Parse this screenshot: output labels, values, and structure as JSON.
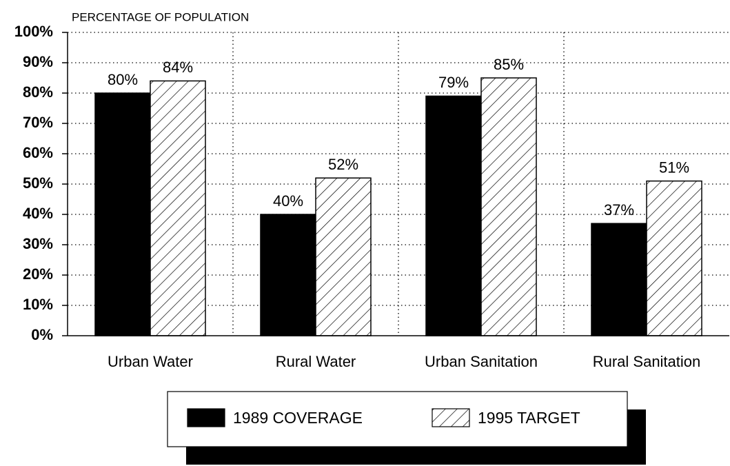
{
  "chart_data": {
    "type": "bar",
    "y_label": "PERCENTAGE OF POPULATION",
    "categories": [
      "Urban Water",
      "Rural Water",
      "Urban Sanitation",
      "Rural Sanitation"
    ],
    "series": [
      {
        "name": "1989 COVERAGE",
        "color": "#000000",
        "hatch": false,
        "values": [
          80,
          40,
          79,
          37
        ],
        "value_labels": [
          "80%",
          "40%",
          "79%",
          "37%"
        ]
      },
      {
        "name": "1995 TARGET",
        "color": "#000000",
        "hatch": true,
        "values": [
          84,
          52,
          85,
          51
        ],
        "value_labels": [
          "84%",
          "52%",
          "85%",
          "51%"
        ]
      }
    ],
    "ylim": [
      0,
      100
    ],
    "yticks": [
      {
        "value": 0,
        "label": "0%"
      },
      {
        "value": 10,
        "label": "10%"
      },
      {
        "value": 20,
        "label": "20%"
      },
      {
        "value": 30,
        "label": "30%"
      },
      {
        "value": 40,
        "label": "40%"
      },
      {
        "value": 50,
        "label": "50%"
      },
      {
        "value": 60,
        "label": "60%"
      },
      {
        "value": 70,
        "label": "70%"
      },
      {
        "value": 80,
        "label": "80%"
      },
      {
        "value": 90,
        "label": "90%"
      },
      {
        "value": 100,
        "label": "100%"
      }
    ],
    "grid": true,
    "legend": "bottom"
  }
}
